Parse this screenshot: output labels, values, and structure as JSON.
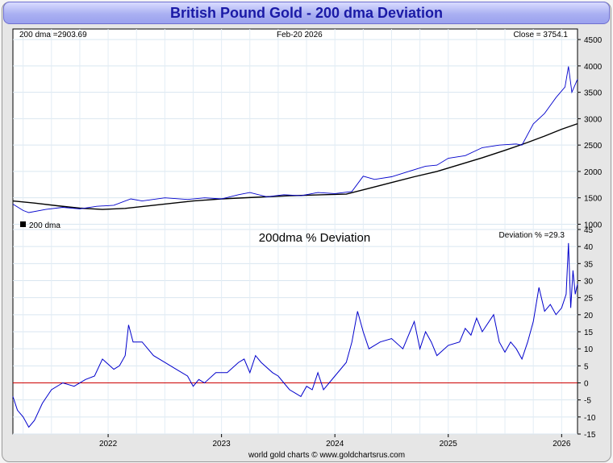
{
  "title": "British Pound Gold - 200 dma Deviation",
  "top_panel": {
    "dma_label": "200 dma =2903.69",
    "date_label": "Feb-20  2026",
    "close_label": "Close = 3754.1",
    "legend_label": "200 dma",
    "line_color": "#000000",
    "price_color": "#0000cc"
  },
  "bottom_panel": {
    "title": "200dma  %  Deviation",
    "deviation_label": "Deviation % =29.3",
    "line_color": "#0000cc",
    "zero_color": "#cc0000"
  },
  "footer": "world gold charts © www.goldchartsrus.com",
  "chart_data": [
    {
      "type": "line",
      "title": "",
      "ylim": [
        900,
        4700
      ],
      "yticks": [
        1000,
        1500,
        2000,
        2500,
        3000,
        3500,
        4000,
        4500
      ],
      "x_range": [
        2021.16,
        2026.14
      ],
      "series": [
        {
          "name": "200 dma",
          "x": [
            2021.16,
            2021.35,
            2021.55,
            2021.75,
            2021.95,
            2022.15,
            2022.45,
            2022.75,
            2023.0,
            2023.3,
            2023.6,
            2023.9,
            2024.1,
            2024.3,
            2024.5,
            2024.7,
            2024.9,
            2025.1,
            2025.3,
            2025.5,
            2025.7,
            2025.85,
            2026.0,
            2026.14
          ],
          "values": [
            1440,
            1400,
            1350,
            1305,
            1280,
            1300,
            1370,
            1440,
            1480,
            1510,
            1540,
            1560,
            1570,
            1680,
            1790,
            1900,
            2000,
            2130,
            2260,
            2400,
            2550,
            2670,
            2800,
            2905
          ]
        },
        {
          "name": "",
          "x": [
            2021.16,
            2021.25,
            2021.3,
            2021.45,
            2021.6,
            2021.75,
            2021.9,
            2022.05,
            2022.2,
            2022.3,
            2022.5,
            2022.7,
            2022.85,
            2023.0,
            2023.15,
            2023.25,
            2023.4,
            2023.55,
            2023.7,
            2023.85,
            2024.0,
            2024.15,
            2024.25,
            2024.35,
            2024.5,
            2024.65,
            2024.8,
            2024.9,
            2025.0,
            2025.15,
            2025.3,
            2025.45,
            2025.6,
            2025.65,
            2025.75,
            2025.85,
            2025.95,
            2026.03,
            2026.06,
            2026.09,
            2026.14
          ],
          "values": [
            1380,
            1260,
            1220,
            1280,
            1320,
            1290,
            1340,
            1360,
            1480,
            1440,
            1500,
            1470,
            1500,
            1480,
            1560,
            1600,
            1520,
            1560,
            1540,
            1600,
            1580,
            1620,
            1910,
            1850,
            1900,
            2000,
            2100,
            2120,
            2250,
            2300,
            2450,
            2500,
            2520,
            2500,
            2900,
            3100,
            3400,
            3600,
            3990,
            3500,
            3750
          ]
        }
      ]
    },
    {
      "type": "line",
      "title": "200dma  %  Deviation",
      "ylim": [
        -15,
        45
      ],
      "yticks": [
        -15,
        -10,
        -5,
        0,
        5,
        10,
        15,
        20,
        25,
        30,
        35,
        40,
        45
      ],
      "x_range": [
        2021.16,
        2026.14
      ],
      "x_ticks": [
        "2022",
        "2023",
        "2024",
        "2025",
        "2026"
      ],
      "x_tick_values": [
        2022.0,
        2023.0,
        2024.0,
        2025.0,
        2026.0
      ],
      "series": [
        {
          "name": "",
          "x": [
            2021.16,
            2021.2,
            2021.25,
            2021.3,
            2021.35,
            2021.42,
            2021.5,
            2021.6,
            2021.7,
            2021.8,
            2021.88,
            2021.95,
            2022.05,
            2022.1,
            2022.15,
            2022.18,
            2022.22,
            2022.3,
            2022.4,
            2022.5,
            2022.6,
            2022.7,
            2022.75,
            2022.8,
            2022.85,
            2022.95,
            2023.05,
            2023.15,
            2023.2,
            2023.25,
            2023.3,
            2023.35,
            2023.45,
            2023.5,
            2023.55,
            2023.6,
            2023.65,
            2023.7,
            2023.75,
            2023.8,
            2023.85,
            2023.9,
            2024.0,
            2024.1,
            2024.15,
            2024.2,
            2024.25,
            2024.3,
            2024.4,
            2024.5,
            2024.6,
            2024.7,
            2024.75,
            2024.8,
            2024.85,
            2024.9,
            2025.0,
            2025.1,
            2025.15,
            2025.2,
            2025.25,
            2025.3,
            2025.4,
            2025.45,
            2025.5,
            2025.55,
            2025.6,
            2025.65,
            2025.7,
            2025.75,
            2025.8,
            2025.85,
            2025.9,
            2025.95,
            2026.0,
            2026.04,
            2026.06,
            2026.08,
            2026.1,
            2026.12,
            2026.14
          ],
          "values": [
            -4,
            -8,
            -10,
            -13,
            -11,
            -6,
            -2,
            0,
            -1,
            1,
            2,
            7,
            4,
            5,
            8,
            17,
            12,
            12,
            8,
            6,
            4,
            2,
            -1,
            1,
            0,
            3,
            3,
            6,
            7,
            3,
            8,
            6,
            3,
            2,
            0,
            -2,
            -3,
            -4,
            -1,
            -2,
            3,
            -2,
            2,
            6,
            12,
            21,
            15,
            10,
            12,
            13,
            10,
            18,
            10,
            15,
            12,
            8,
            11,
            12,
            16,
            14,
            19,
            15,
            20,
            12,
            9,
            12,
            10,
            7,
            12,
            18,
            28,
            21,
            23,
            20,
            22,
            26,
            41,
            22,
            33,
            26,
            29
          ]
        }
      ]
    }
  ]
}
